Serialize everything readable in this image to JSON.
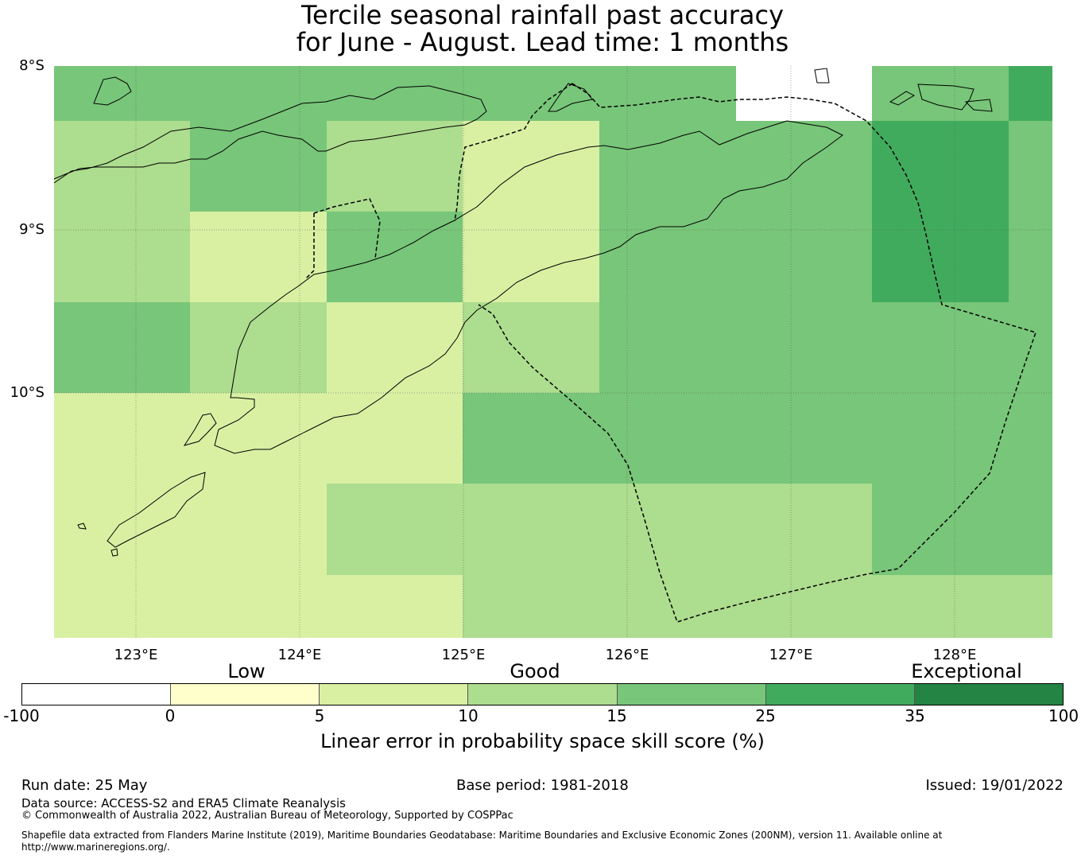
{
  "title_line1": "Tercile seasonal rainfall past accuracy",
  "title_line2": "for June - August. Lead time: 1 months",
  "lat_labels": [
    "8°S",
    "9°S",
    "10°S"
  ],
  "lon_labels": [
    "123°E",
    "124°E",
    "125°E",
    "126°E",
    "127°E",
    "128°E"
  ],
  "categories": [
    "Low",
    "Good",
    "Exceptional"
  ],
  "colorbar": {
    "ticks": [
      "-100",
      "0",
      "5",
      "10",
      "15",
      "25",
      "35",
      "100"
    ],
    "colors": [
      "#ffffff",
      "#ffffcc",
      "#d9f0a3",
      "#addd8e",
      "#78c679",
      "#41ab5d",
      "#238443"
    ],
    "label": "Linear error in probability space skill score (%)"
  },
  "grid_cells": [
    [
      15,
      15,
      15,
      15,
      15,
      -100,
      15,
      25
    ],
    [
      10,
      15,
      10,
      5,
      15,
      15,
      25,
      15
    ],
    [
      10,
      5,
      15,
      5,
      15,
      15,
      25,
      15
    ],
    [
      15,
      10,
      5,
      10,
      15,
      15,
      15,
      15
    ],
    [
      5,
      5,
      5,
      15,
      15,
      15,
      15,
      15
    ],
    [
      5,
      5,
      10,
      10,
      10,
      10,
      15,
      15
    ],
    [
      5,
      5,
      5,
      10,
      10,
      10,
      10,
      10
    ]
  ],
  "footer": {
    "run_date": "Run date: 25 May",
    "base_period": "Base period: 1981-2018",
    "issued": "Issued: 19/01/2022",
    "data_source": "Data source: ACCESS-S2 and ERA5 Climate Reanalysis",
    "copyright": "© Commonwealth of Australia 2022, Australian Bureau of Meteorology, Supported by COSPPac",
    "shapefile_line1": "Shapefile data extracted from Flanders Marine Institute (2019), Maritime Boundaries Geodatabase: Maritime Boundaries and Exclusive Economic Zones (200NM), version 11. Available online at",
    "shapefile_line2": "http://www.marineregions.org/."
  }
}
